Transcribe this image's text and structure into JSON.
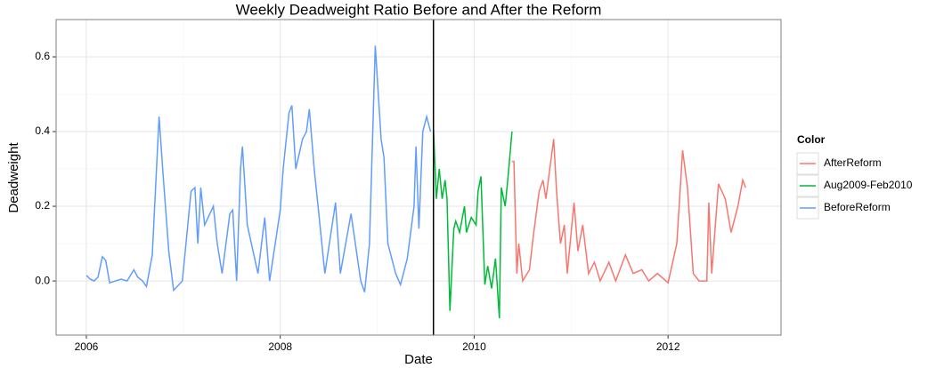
{
  "chart_data": {
    "type": "line",
    "title": "Weekly Deadweight Ratio Before and After the Reform",
    "x_label": "Date",
    "y_label": "Deadweight",
    "legend_title": "Color",
    "xlim": [
      2005.688,
      2013.165
    ],
    "xticks": [
      2006,
      2008,
      2010,
      2012
    ],
    "ylim": [
      -0.145,
      0.7
    ],
    "yticks": [
      {
        "value": 0,
        "label": "0.0"
      },
      0.2,
      0.4,
      0.6
    ],
    "grid": true,
    "vline": 2009.58,
    "vline_color": "#000000",
    "legend_position": "right",
    "series": [
      {
        "name": "AfterReform",
        "color": "#F8766D",
        "x": [
          2010.39,
          2010.41,
          2010.44,
          2010.46,
          2010.5,
          2010.57,
          2010.61,
          2010.67,
          2010.71,
          2010.74,
          2010.78,
          2010.82,
          2010.85,
          2010.89,
          2010.93,
          2010.96,
          2011.03,
          2011.07,
          2011.12,
          2011.18,
          2011.24,
          2011.3,
          2011.39,
          2011.46,
          2011.56,
          2011.64,
          2011.73,
          2011.8,
          2011.89,
          2012.0,
          2012.09,
          2012.15,
          2012.2,
          2012.26,
          2012.32,
          2012.4,
          2012.42,
          2012.45,
          2012.52,
          2012.59,
          2012.65,
          2012.72,
          2012.77,
          2012.8
        ],
        "values": [
          0.32,
          0.32,
          0.02,
          0.1,
          0.0,
          0.03,
          0.12,
          0.24,
          0.27,
          0.22,
          0.3,
          0.38,
          0.24,
          0.1,
          0.15,
          0.02,
          0.21,
          0.08,
          0.15,
          0.02,
          0.05,
          0.0,
          0.05,
          0.0,
          0.07,
          0.02,
          0.03,
          0.0,
          0.02,
          -0.005,
          0.1,
          0.35,
          0.25,
          0.02,
          0.0,
          0.0,
          0.21,
          0.02,
          0.26,
          0.22,
          0.13,
          0.2,
          0.27,
          0.25
        ]
      },
      {
        "name": "Aug2009-Feb2010",
        "color": "#00BA38",
        "x": [
          2009.58,
          2009.61,
          2009.64,
          2009.67,
          2009.7,
          2009.72,
          2009.75,
          2009.79,
          2009.81,
          2009.85,
          2009.9,
          2009.92,
          2009.97,
          2010.02,
          2010.04,
          2010.07,
          2010.11,
          2010.14,
          2010.18,
          2010.22,
          2010.26,
          2010.28,
          2010.32,
          2010.35,
          2010.39
        ],
        "values": [
          0.41,
          0.22,
          0.3,
          0.22,
          0.27,
          0.22,
          -0.08,
          0.14,
          0.16,
          0.13,
          0.2,
          0.13,
          0.17,
          0.15,
          0.24,
          0.28,
          -0.01,
          0.04,
          -0.02,
          0.06,
          -0.1,
          0.25,
          0.2,
          0.28,
          0.4
        ]
      },
      {
        "name": "BeforeReform",
        "color": "#619CFF",
        "x": [
          2006.0,
          2006.04,
          2006.08,
          2006.12,
          2006.165,
          2006.2,
          2006.24,
          2006.3,
          2006.36,
          2006.42,
          2006.49,
          2006.53,
          2006.58,
          2006.62,
          2006.68,
          2006.75,
          2006.79,
          2006.85,
          2006.9,
          2006.99,
          2007.08,
          2007.12,
          2007.15,
          2007.18,
          2007.22,
          2007.31,
          2007.35,
          2007.4,
          2007.48,
          2007.51,
          2007.55,
          2007.59,
          2007.61,
          2007.66,
          2007.77,
          2007.84,
          2007.89,
          2008.0,
          2008.03,
          2008.09,
          2008.12,
          2008.16,
          2008.23,
          2008.27,
          2008.3,
          2008.35,
          2008.39,
          2008.46,
          2008.57,
          2008.62,
          2008.73,
          2008.83,
          2008.87,
          2008.92,
          2008.98,
          2009.04,
          2009.07,
          2009.11,
          2009.19,
          2009.24,
          2009.31,
          2009.38,
          2009.4,
          2009.43,
          2009.47,
          2009.51,
          2009.55
        ],
        "values": [
          0.015,
          0.005,
          0.0,
          0.01,
          0.065,
          0.055,
          -0.005,
          0.0,
          0.005,
          0.0,
          0.03,
          0.01,
          0.0,
          -0.015,
          0.07,
          0.44,
          0.29,
          0.08,
          -0.025,
          0.0,
          0.24,
          0.25,
          0.1,
          0.25,
          0.15,
          0.2,
          0.1,
          0.02,
          0.18,
          0.19,
          0.0,
          0.3,
          0.36,
          0.15,
          0.02,
          0.17,
          0.0,
          0.19,
          0.3,
          0.45,
          0.47,
          0.3,
          0.38,
          0.4,
          0.46,
          0.3,
          0.2,
          0.02,
          0.21,
          0.02,
          0.18,
          0.0,
          -0.03,
          0.1,
          0.63,
          0.38,
          0.33,
          0.1,
          0.02,
          -0.01,
          0.06,
          0.2,
          0.36,
          0.14,
          0.4,
          0.44,
          0.4
        ]
      }
    ]
  }
}
